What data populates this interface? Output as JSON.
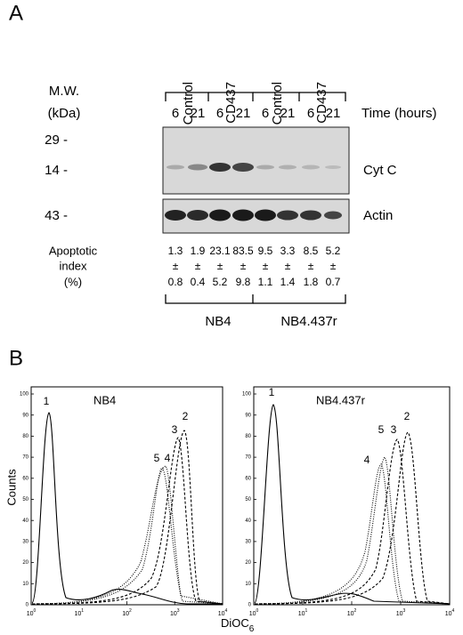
{
  "panel_a": {
    "label": "A",
    "mw_label": [
      "M.W.",
      "(kDa)"
    ],
    "groups": [
      "Control",
      "CD437",
      "Control",
      "CD437"
    ],
    "times": [
      6,
      21,
      6,
      21,
      6,
      21,
      6,
      21
    ],
    "time_label": "Time (hours)",
    "markers": [
      "29 -",
      "14 -",
      "43 -"
    ],
    "bands": [
      "Cyt C",
      "Actin"
    ],
    "apoptotic_label": [
      "Apoptotic",
      "index",
      "(%)"
    ],
    "apoptotic_values": [
      1.3,
      1.9,
      23.1,
      83.5,
      9.5,
      3.3,
      8.5,
      5.2
    ],
    "pm": "±",
    "apoptotic_errors": [
      0.8,
      0.4,
      5.2,
      9.8,
      1.1,
      1.4,
      1.8,
      0.7
    ],
    "cell_lines": [
      "NB4",
      "NB4.437r"
    ]
  },
  "panel_b": {
    "label": "B",
    "y_label": "Counts",
    "x_label": "DiOC",
    "x_label_sub": "6",
    "yticks": [
      0,
      10,
      20,
      30,
      40,
      50,
      60,
      70,
      80,
      90,
      100
    ],
    "xtick_base": "10",
    "xtick_exponents": [
      0,
      1,
      2,
      3,
      4
    ],
    "plots": [
      {
        "title": "NB4",
        "curve_labels": [
          "1",
          "5",
          "4",
          "3",
          "2"
        ]
      },
      {
        "title": "NB4.437r",
        "curve_labels": [
          "1",
          "5",
          "3",
          "2",
          "4"
        ]
      }
    ]
  }
}
